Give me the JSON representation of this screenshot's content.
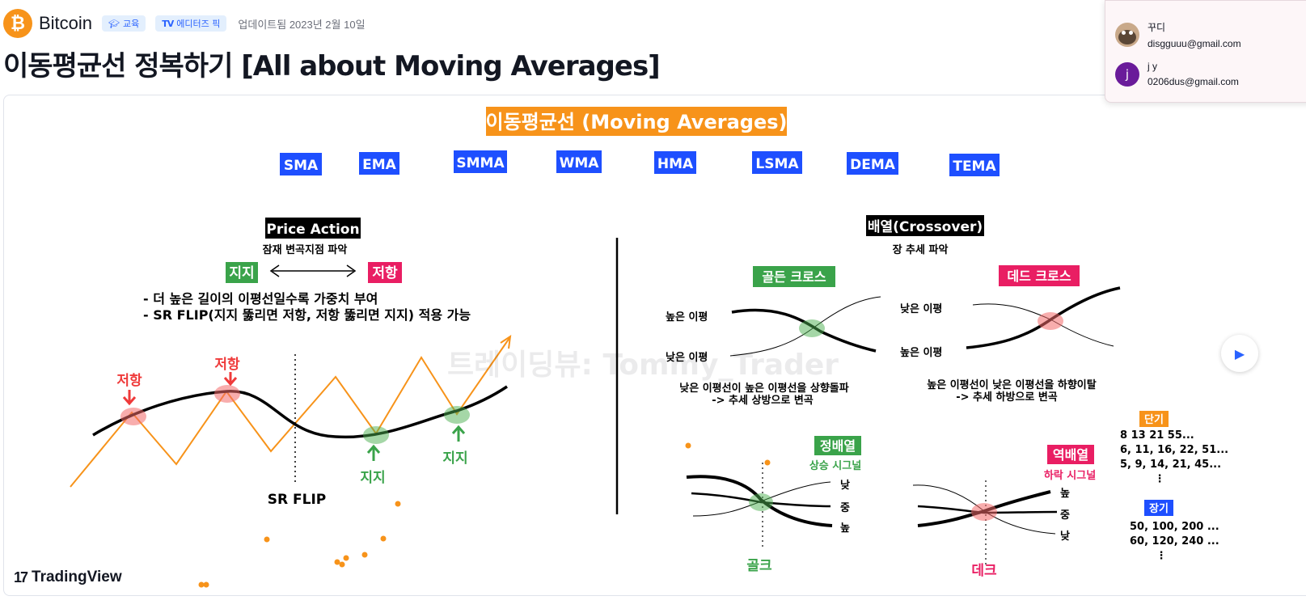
{
  "header": {
    "coin_name": "Bitcoin",
    "coin_symbol": "₿",
    "tags": [
      "교육",
      "에디터즈 픽"
    ],
    "updated": "업데이트됨 2023년 2월 10일",
    "title": "이동평균선 정복하기 [All about Moving Averages]"
  },
  "accounts": [
    {
      "name": "꾸디",
      "email": "disgguuu@gmail.com"
    },
    {
      "name": "j y",
      "email": "0206dus@gmail.com",
      "initial": "j"
    }
  ],
  "idea": {
    "heading": "이동평균선 (Moving Averages)",
    "ma_types": [
      "SMA",
      "EMA",
      "SMMA",
      "WMA",
      "HMA",
      "LSMA",
      "DEMA",
      "TEMA"
    ],
    "left": {
      "title": "Price Action",
      "subtitle": "잠재 변곡지점 파악",
      "support": "지지",
      "resistance": "저항",
      "note1": "- 더 높은 길이의 이평선일수록 가중치 부여",
      "note2": "- SR FLIP(지지 뚫리면 저항, 저항 뚫리면 지지) 적용 가능",
      "resist_label_1": "저항",
      "resist_label_2": "저항",
      "support_label_1": "지지",
      "support_label_2": "지지",
      "sr_flip": "SR FLIP"
    },
    "right": {
      "title": "배열(Crossover)",
      "subtitle": "장 추세 파악",
      "golden_cross": "골든 크로스",
      "dead_cross": "데드 크로스",
      "high_ma": "높은 이평",
      "low_ma": "낮은 이평",
      "golden_desc1": "낮은 이평선이 높은 이평선을 상향돌파",
      "golden_desc2": "-> 추세 상방으로 변곡",
      "dead_desc1": "높은 이평선이 낮은 이평선을 하향이탈",
      "dead_desc2": "-> 추세 하방으로 변곡",
      "aligned": "정배열",
      "aligned_signal": "상승 시그널",
      "reverse": "역배열",
      "reverse_signal": "하락 시그널",
      "low": "낮",
      "mid": "중",
      "high": "높",
      "golk": "골크",
      "dek": "데크",
      "short_term": "단기",
      "short_rows": [
        "8 13 21 55...",
        "6, 11, 16, 22, 51...",
        "5, 9, 14, 21, 45..."
      ],
      "long_term": "장기",
      "long_rows": [
        "50, 100, 200 ...",
        "60, 120, 240 ..."
      ],
      "ellipsis": "⋮"
    },
    "watermark": "트레이딩뷰: Tommy_Trader"
  },
  "branding": {
    "tradingview": "TradingView",
    "mark": "17"
  },
  "colors": {
    "orange": "#f7931a",
    "blue": "#1e4fff",
    "green": "#3aa34a",
    "magenta": "#e91e63",
    "black": "#000000"
  }
}
